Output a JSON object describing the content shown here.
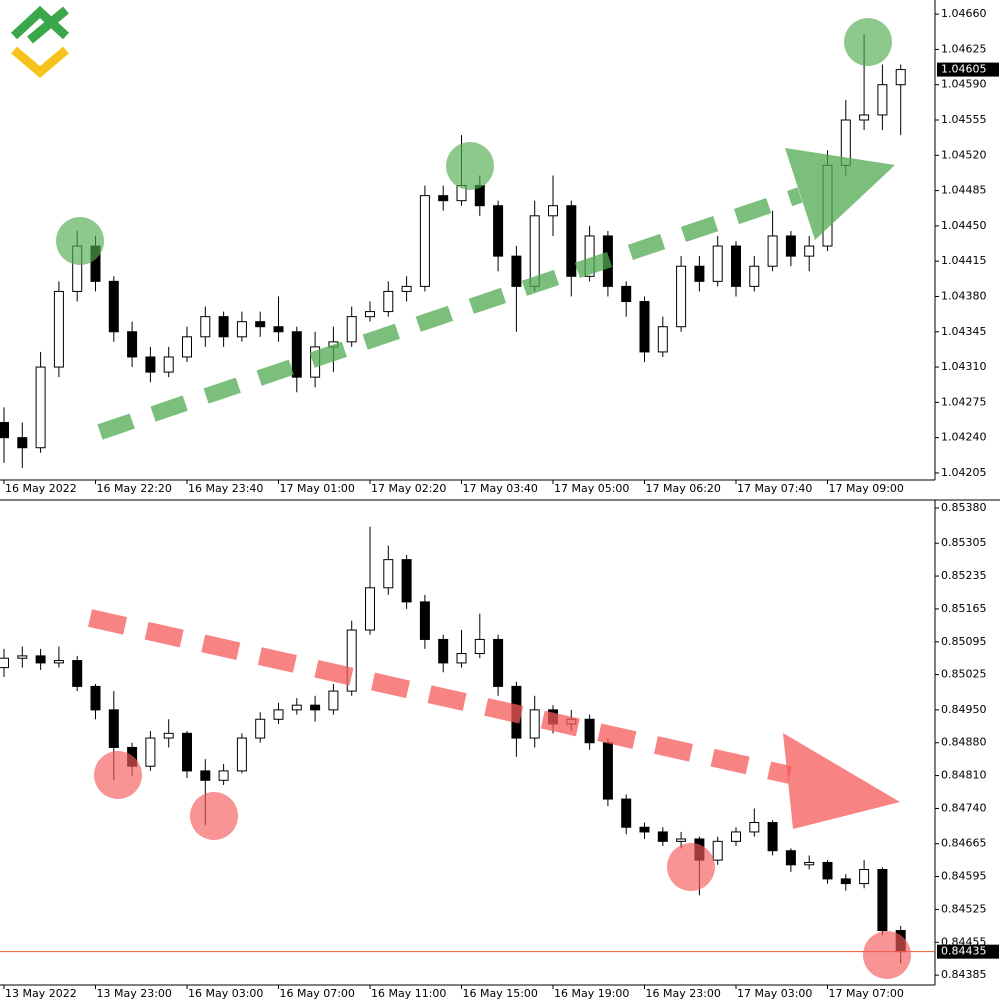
{
  "chart_data": [
    {
      "type": "candlestick",
      "categories": [
        "16 May 2022",
        null,
        null,
        null,
        null,
        "16 May 22:20",
        null,
        null,
        null,
        null,
        "16 May 23:40",
        null,
        null,
        null,
        null,
        "17 May 01:00",
        null,
        null,
        null,
        null,
        "17 May 02:20",
        null,
        null,
        null,
        null,
        "17 May 03:40",
        null,
        null,
        null,
        null,
        "17 May 05:00",
        null,
        null,
        null,
        null,
        "17 May 06:20",
        null,
        null,
        null,
        null,
        "17 May 07:40",
        null,
        null,
        null,
        null,
        "17 May 09:00",
        null,
        null,
        null,
        null
      ],
      "open": [
        1.04255,
        1.0424,
        1.0423,
        1.0431,
        1.04385,
        1.0443,
        1.04395,
        1.04345,
        1.0432,
        1.04305,
        1.0432,
        1.0434,
        1.0436,
        1.0434,
        1.04355,
        1.0435,
        1.04345,
        1.043,
        1.0433,
        1.04335,
        1.0436,
        1.04365,
        1.04385,
        1.0439,
        1.0448,
        1.04475,
        1.0449,
        1.0447,
        1.0442,
        1.0439,
        1.0446,
        1.0447,
        1.044,
        1.0444,
        1.0439,
        1.04375,
        1.04325,
        1.0435,
        1.0441,
        1.04395,
        1.0443,
        1.0439,
        1.0441,
        1.0444,
        1.0442,
        1.0443,
        1.0451,
        1.04555,
        1.0456,
        1.0459
      ],
      "high": [
        1.0427,
        1.04255,
        1.04325,
        1.04395,
        1.04445,
        1.0444,
        1.044,
        1.04355,
        1.0433,
        1.0433,
        1.0435,
        1.0437,
        1.04365,
        1.04365,
        1.04365,
        1.0438,
        1.0435,
        1.04345,
        1.0435,
        1.0437,
        1.04375,
        1.04395,
        1.044,
        1.0449,
        1.0449,
        1.0454,
        1.045,
        1.04475,
        1.0443,
        1.04475,
        1.045,
        1.04475,
        1.0445,
        1.04445,
        1.04395,
        1.0438,
        1.0436,
        1.0442,
        1.0442,
        1.0444,
        1.04435,
        1.0442,
        1.04465,
        1.04445,
        1.0444,
        1.04525,
        1.04575,
        1.0464,
        1.0461,
        1.0461
      ],
      "low": [
        1.04215,
        1.0421,
        1.04225,
        1.043,
        1.04375,
        1.04385,
        1.04335,
        1.0431,
        1.04295,
        1.043,
        1.04315,
        1.0433,
        1.0433,
        1.04335,
        1.0434,
        1.04335,
        1.04285,
        1.0429,
        1.04305,
        1.0433,
        1.04355,
        1.0436,
        1.04375,
        1.04385,
        1.04465,
        1.0447,
        1.0446,
        1.04405,
        1.04345,
        1.04385,
        1.0444,
        1.0438,
        1.04395,
        1.0438,
        1.0436,
        1.04315,
        1.0432,
        1.04345,
        1.04385,
        1.0439,
        1.0438,
        1.04385,
        1.04405,
        1.0441,
        1.04405,
        1.04425,
        1.045,
        1.04545,
        1.04545,
        1.0454
      ],
      "close": [
        1.0424,
        1.0423,
        1.0431,
        1.04385,
        1.0443,
        1.04395,
        1.04345,
        1.0432,
        1.04305,
        1.0432,
        1.0434,
        1.0436,
        1.0434,
        1.04355,
        1.0435,
        1.04345,
        1.043,
        1.0433,
        1.04335,
        1.0436,
        1.04365,
        1.04385,
        1.0439,
        1.0448,
        1.04475,
        1.0449,
        1.0447,
        1.0442,
        1.0439,
        1.0446,
        1.0447,
        1.044,
        1.0444,
        1.0439,
        1.04375,
        1.04325,
        1.0435,
        1.0441,
        1.04395,
        1.0443,
        1.0439,
        1.0441,
        1.0444,
        1.0442,
        1.0443,
        1.0451,
        1.04555,
        1.0456,
        1.0459,
        1.04605
      ],
      "ylim": [
        1.04198,
        1.04674
      ],
      "yticks": [
        {
          "value": 1.0466,
          "label": "1.04660"
        },
        1.04625,
        {
          "value": 1.0459,
          "label": "1.04590"
        },
        1.04555,
        {
          "value": 1.0452,
          "label": "1.04520"
        },
        1.04485,
        {
          "value": 1.0445,
          "label": "1.04450"
        },
        1.04415,
        {
          "value": 1.0438,
          "label": "1.04380"
        },
        1.04345,
        {
          "value": 1.0431,
          "label": "1.04310"
        },
        1.04275,
        {
          "value": 1.0424,
          "label": "1.04240"
        },
        1.04205
      ],
      "current_price": 1.04605,
      "up_color": "#ffffff",
      "down_color": "#000000"
    },
    {
      "type": "candlestick",
      "categories": [
        "13 May 2022",
        null,
        null,
        null,
        null,
        "13 May 23:00",
        null,
        null,
        null,
        null,
        "16 May 03:00",
        null,
        null,
        null,
        null,
        "16 May 07:00",
        null,
        null,
        null,
        null,
        "16 May 11:00",
        null,
        null,
        null,
        null,
        "16 May 15:00",
        null,
        null,
        null,
        null,
        "16 May 19:00",
        null,
        null,
        null,
        null,
        "16 May 23:00",
        null,
        null,
        null,
        null,
        "17 May 03:00",
        null,
        null,
        null,
        null,
        "17 May 07:00",
        null,
        null,
        null,
        null
      ],
      "open": [
        0.8504,
        0.8506,
        0.85065,
        0.8505,
        0.85055,
        0.85,
        0.8495,
        0.8487,
        0.8483,
        0.8489,
        0.849,
        0.8482,
        0.848,
        0.8482,
        0.8489,
        0.8493,
        0.8495,
        0.8496,
        0.8495,
        0.8499,
        0.8512,
        0.8521,
        0.8527,
        0.8518,
        0.851,
        0.8505,
        0.8507,
        0.851,
        0.85,
        0.8489,
        0.8495,
        0.8492,
        0.8493,
        0.8488,
        0.8476,
        0.847,
        0.8469,
        0.8467,
        0.84675,
        0.8463,
        0.8467,
        0.8469,
        0.8471,
        0.8465,
        0.8462,
        0.84625,
        0.8459,
        0.8458,
        0.8461,
        0.8448
      ],
      "high": [
        0.8508,
        0.85085,
        0.8508,
        0.85085,
        0.85065,
        0.85005,
        0.8499,
        0.8488,
        0.84905,
        0.8493,
        0.84905,
        0.84845,
        0.84835,
        0.849,
        0.84945,
        0.84965,
        0.84975,
        0.8498,
        0.85005,
        0.8514,
        0.8534,
        0.853,
        0.8528,
        0.85195,
        0.8511,
        0.8512,
        0.85155,
        0.8511,
        0.8501,
        0.8498,
        0.8496,
        0.8495,
        0.8494,
        0.8489,
        0.8477,
        0.8471,
        0.847,
        0.8469,
        0.8468,
        0.8468,
        0.847,
        0.8474,
        0.84715,
        0.84655,
        0.8464,
        0.8463,
        0.846,
        0.8463,
        0.84615,
        0.8449
      ],
      "low": [
        0.8502,
        0.8504,
        0.85035,
        0.8504,
        0.8499,
        0.8493,
        0.848,
        0.8481,
        0.8482,
        0.8487,
        0.84805,
        0.84705,
        0.8479,
        0.84815,
        0.8488,
        0.8492,
        0.8494,
        0.84925,
        0.8494,
        0.8498,
        0.8511,
        0.85195,
        0.85165,
        0.8508,
        0.8503,
        0.8504,
        0.8506,
        0.8498,
        0.8485,
        0.8487,
        0.849,
        0.84905,
        0.84865,
        0.84745,
        0.84685,
        0.84675,
        0.8466,
        0.84655,
        0.84555,
        0.8462,
        0.8466,
        0.8468,
        0.8464,
        0.84605,
        0.8461,
        0.8458,
        0.84565,
        0.8457,
        0.8447,
        0.8441
      ],
      "close": [
        0.8506,
        0.85065,
        0.8505,
        0.85055,
        0.85,
        0.8495,
        0.8487,
        0.8483,
        0.8489,
        0.849,
        0.8482,
        0.848,
        0.8482,
        0.8489,
        0.8493,
        0.8495,
        0.8496,
        0.8495,
        0.8499,
        0.8512,
        0.8521,
        0.8527,
        0.8518,
        0.851,
        0.8505,
        0.8507,
        0.851,
        0.85,
        0.8489,
        0.8495,
        0.8492,
        0.8493,
        0.8488,
        0.8476,
        0.847,
        0.8469,
        0.8467,
        0.84675,
        0.8463,
        0.8467,
        0.8469,
        0.8471,
        0.8465,
        0.8462,
        0.84625,
        0.8459,
        0.8458,
        0.8461,
        0.8448,
        0.84435
      ],
      "ylim": [
        0.84364,
        0.85397
      ],
      "yticks": [
        {
          "value": 0.8538,
          "label": "0.85380"
        },
        0.85305,
        0.85235,
        0.85165,
        0.85095,
        0.85025,
        {
          "value": 0.8495,
          "label": "0.84950"
        },
        {
          "value": 0.8488,
          "label": "0.84880"
        },
        {
          "value": 0.8481,
          "label": "0.84810"
        },
        {
          "value": 0.8474,
          "label": "0.84740"
        },
        0.84665,
        0.84595,
        0.84525,
        0.84455,
        0.84385
      ],
      "current_price": 0.84435,
      "price_line_color": "#e8562e",
      "up_color": "#ffffff",
      "down_color": "#000000"
    }
  ]
}
